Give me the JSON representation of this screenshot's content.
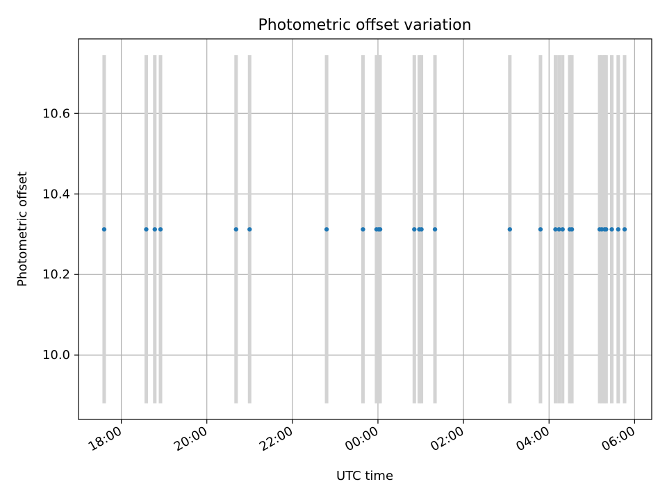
{
  "chart_data": {
    "type": "scatter",
    "title": "Photometric offset variation",
    "xlabel": "UTC time",
    "ylabel": "Photometric offset",
    "xlim": [
      "17:00",
      "06:24"
    ],
    "ylim": [
      9.84,
      10.785
    ],
    "grid": true,
    "x_ticks": [
      "18:00",
      "20:00",
      "22:00",
      "00:00",
      "02:00",
      "04:00",
      "06:00"
    ],
    "y_ticks": [
      "10.0",
      "10.2",
      "10.4",
      "10.6"
    ],
    "y_tick_values": [
      10.0,
      10.2,
      10.4,
      10.6
    ],
    "band_y_range": [
      9.88,
      10.745
    ],
    "band_color": "#d3d3d3",
    "point_color": "#1f77b4",
    "series": [
      {
        "x": [
          "17:36",
          "18:35",
          "18:47",
          "18:55",
          "20:41",
          "21:00",
          "22:48",
          "23:39",
          "23:58",
          "00:01",
          "00:03",
          "00:51",
          "00:58",
          "01:01",
          "01:20",
          "03:05",
          "03:48",
          "04:09",
          "04:14",
          "04:19",
          "04:29",
          "04:32",
          "05:11",
          "05:14",
          "05:18",
          "05:20",
          "05:28",
          "05:37",
          "05:46"
        ],
        "y": [
          10.312,
          10.312,
          10.312,
          10.312,
          10.312,
          10.312,
          10.312,
          10.312,
          10.312,
          10.312,
          10.312,
          10.312,
          10.312,
          10.312,
          10.312,
          10.312,
          10.312,
          10.312,
          10.312,
          10.312,
          10.312,
          10.312,
          10.312,
          10.312,
          10.312,
          10.312,
          10.312,
          10.312,
          10.312
        ]
      }
    ]
  }
}
